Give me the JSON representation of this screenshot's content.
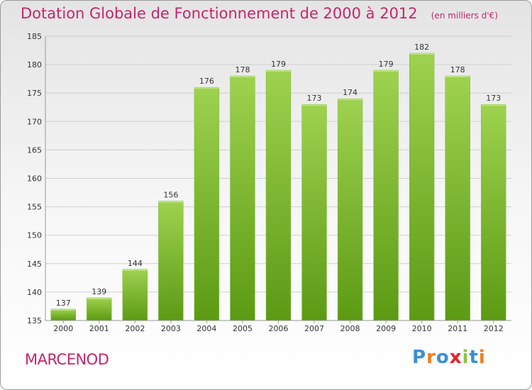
{
  "title": "Dotation Globale de Fonctionnement de 2000 à 2012",
  "subtitle": "(en milliers d'€)",
  "commune": "MARCENOD",
  "logo": {
    "text": "Proxiti",
    "letter_colors": [
      "#3b8fd4",
      "#f07d1e",
      "#3b8fd4",
      "#e8212a",
      "#8cc63f",
      "#3b8fd4",
      "#f07d1e"
    ]
  },
  "colors": {
    "title": "#c8246c",
    "bar_light": "#9ed24f",
    "bar_dark": "#5c9a14",
    "grid": "#cfcfcf",
    "axis_text": "#333333"
  },
  "chart_data": {
    "type": "bar",
    "categories": [
      "2000",
      "2001",
      "2002",
      "2003",
      "2004",
      "2005",
      "2006",
      "2007",
      "2008",
      "2009",
      "2010",
      "2011",
      "2012"
    ],
    "values": [
      137,
      139,
      144,
      156,
      176,
      178,
      179,
      173,
      174,
      179,
      182,
      178,
      173
    ],
    "title": "Dotation Globale de Fonctionnement de 2000 à 2012",
    "subtitle": "(en milliers d'€)",
    "xlabel": "",
    "ylabel": "",
    "ylim": [
      135,
      185
    ],
    "yticks": [
      135,
      140,
      145,
      150,
      155,
      160,
      165,
      170,
      175,
      180,
      185
    ],
    "grid": true,
    "data_labels": true
  }
}
